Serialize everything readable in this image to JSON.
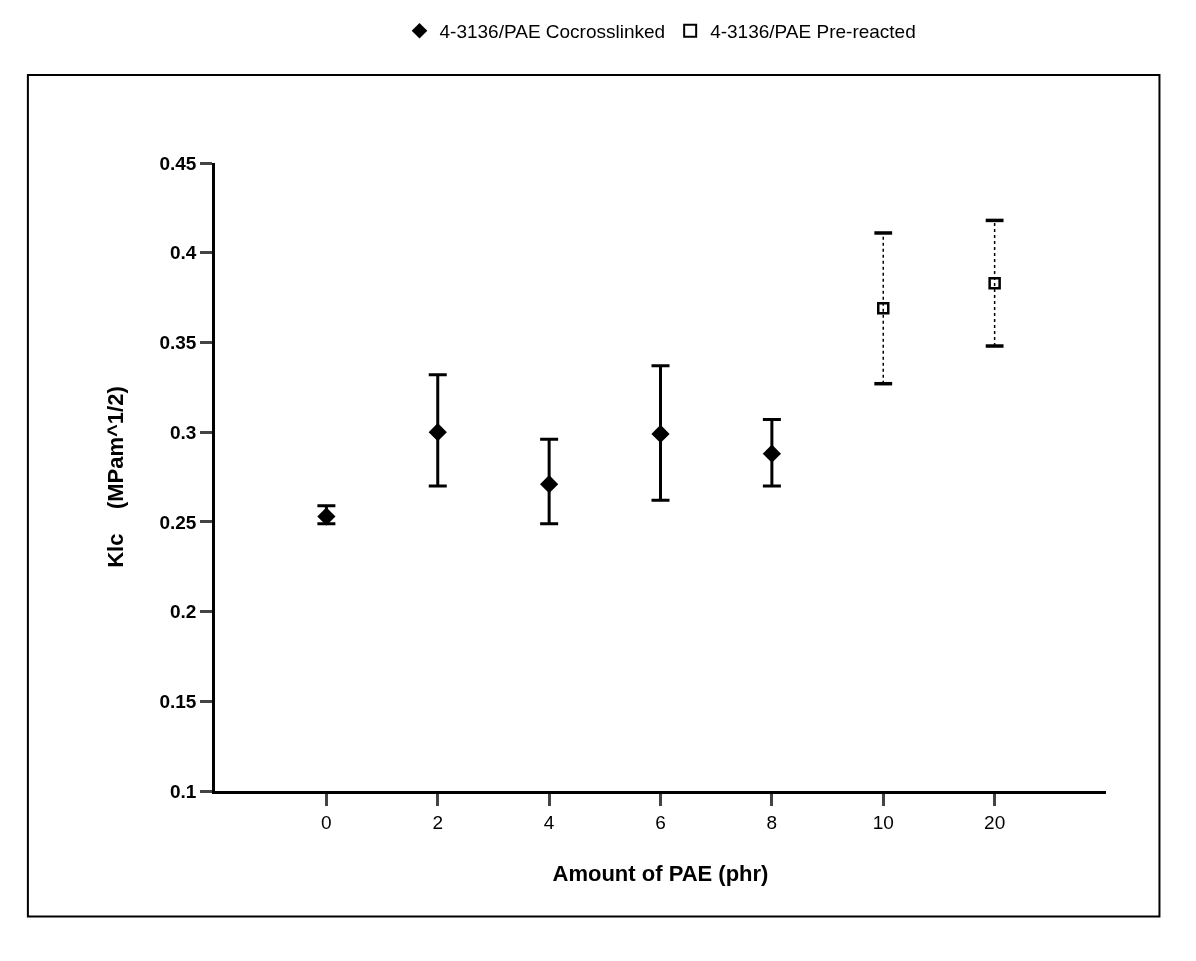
{
  "chart_data": {
    "type": "scatter",
    "xlabel": "Amount of PAE (phr)",
    "ylabel": "Klc    (MPam^1/2)",
    "categories": [
      "0",
      "2",
      "4",
      "6",
      "8",
      "10",
      "20"
    ],
    "series": [
      {
        "name": "4-3136/PAE Cocrosslinked",
        "color": "#000000",
        "marker": "diamond",
        "values": [
          0.253,
          0.3,
          0.271,
          0.299,
          0.288,
          null,
          null
        ],
        "errors": [
          [
            0.249,
            0.259
          ],
          [
            0.27,
            0.332
          ],
          [
            0.249,
            0.296
          ],
          [
            0.262,
            0.337
          ],
          [
            0.27,
            0.307
          ],
          null,
          null
        ]
      },
      {
        "name": "4-3136/PAE Pre-reacted",
        "color": "#000000",
        "marker": "square",
        "line_style": "dotted",
        "values": [
          null,
          null,
          null,
          null,
          null,
          0.369,
          0.383
        ],
        "errors": [
          null,
          null,
          null,
          null,
          null,
          [
            0.327,
            0.411
          ],
          [
            0.348,
            0.418
          ]
        ]
      }
    ],
    "ylim": [
      0.1,
      0.45
    ],
    "yticks": [
      0.1,
      0.15,
      0.2,
      0.25,
      0.3,
      0.35,
      0.4,
      0.45
    ],
    "legend": "top"
  }
}
